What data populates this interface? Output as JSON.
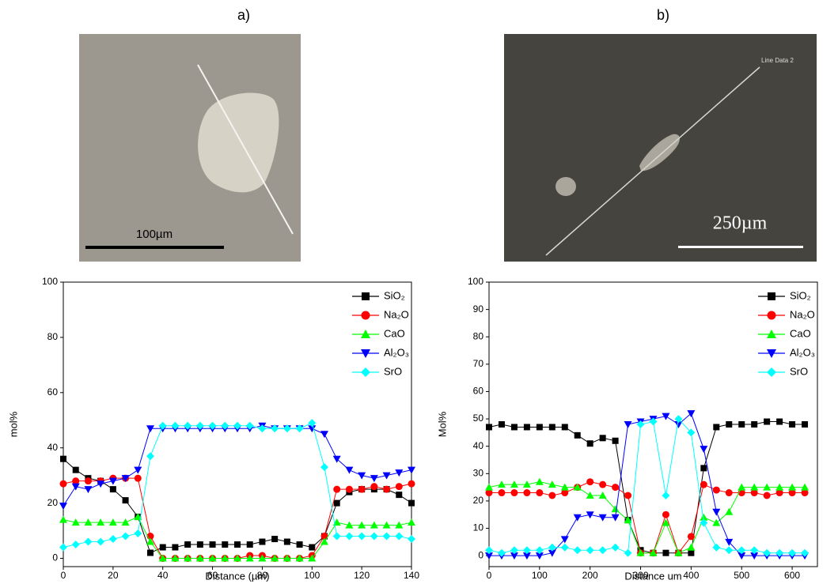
{
  "panels": [
    {
      "label": "a)",
      "scale_bar": "100µm"
    },
    {
      "label": "b)",
      "scale_bar": "250µm",
      "annotation": "Line Data 2"
    }
  ],
  "chart_data": [
    {
      "type": "line",
      "x_label": "Distance (µm)",
      "y_label": "mol%",
      "xlim": [
        0,
        140
      ],
      "ylim": [
        -3,
        100
      ],
      "xticks": [
        0,
        20,
        40,
        60,
        80,
        100,
        120,
        140
      ],
      "yticks": [
        0,
        20,
        40,
        60,
        80,
        100
      ],
      "grid": false,
      "legend": "upper right",
      "x": [
        0,
        5,
        10,
        15,
        20,
        25,
        30,
        35,
        40,
        45,
        50,
        55,
        60,
        65,
        70,
        75,
        80,
        85,
        90,
        95,
        100,
        105,
        110,
        115,
        120,
        125,
        130,
        135,
        140
      ],
      "series": [
        {
          "name": "SiO₂",
          "color": "#000000",
          "marker": "square",
          "values": [
            36,
            32,
            29,
            28,
            25,
            21,
            15,
            2,
            4,
            4,
            5,
            5,
            5,
            5,
            5,
            5,
            6,
            7,
            6,
            5,
            4,
            8,
            20,
            24,
            25,
            25,
            25,
            23,
            20
          ]
        },
        {
          "name": "Na₂O",
          "color": "#ff0000",
          "marker": "circle",
          "values": [
            27,
            28,
            28,
            28,
            29,
            29,
            29,
            8,
            0,
            0,
            0,
            0,
            0,
            0,
            0,
            1,
            1,
            0,
            0,
            0,
            1,
            8,
            25,
            25,
            25,
            26,
            25,
            26,
            27
          ]
        },
        {
          "name": "CaO",
          "color": "#00ff00",
          "marker": "triangle-up",
          "values": [
            14,
            13,
            13,
            13,
            13,
            13,
            15,
            6,
            0,
            0,
            0,
            0,
            0,
            0,
            0,
            0,
            0,
            0,
            0,
            0,
            0,
            6,
            13,
            12,
            12,
            12,
            12,
            12,
            13
          ]
        },
        {
          "name": "Al₂O₃",
          "color": "#0000ff",
          "marker": "triangle-down",
          "values": [
            19,
            26,
            25,
            27,
            28,
            29,
            32,
            47,
            47,
            47,
            47,
            47,
            47,
            47,
            47,
            47,
            48,
            47,
            47,
            47,
            47,
            45,
            36,
            32,
            30,
            29,
            30,
            31,
            32
          ]
        },
        {
          "name": "SrO",
          "color": "#00ffff",
          "marker": "diamond",
          "values": [
            4,
            5,
            6,
            6,
            7,
            8,
            9,
            37,
            48,
            48,
            48,
            48,
            48,
            48,
            48,
            48,
            47,
            47,
            47,
            47,
            49,
            33,
            8,
            8,
            8,
            8,
            8,
            8,
            7
          ]
        }
      ]
    },
    {
      "type": "line",
      "x_label": "Distance um",
      "y_label": "Mol%",
      "xlim": [
        0,
        650
      ],
      "ylim": [
        -4,
        100
      ],
      "xticks": [
        0,
        100,
        200,
        300,
        400,
        500,
        600
      ],
      "yticks": [
        0,
        10,
        20,
        30,
        40,
        50,
        60,
        70,
        80,
        90,
        100
      ],
      "grid": false,
      "legend": "upper right",
      "x": [
        0,
        25,
        50,
        75,
        100,
        125,
        150,
        175,
        200,
        225,
        250,
        275,
        300,
        325,
        350,
        375,
        400,
        425,
        450,
        475,
        500,
        525,
        550,
        575,
        600,
        625
      ],
      "series": [
        {
          "name": "SiO₂",
          "color": "#000000",
          "marker": "square",
          "values": [
            47,
            48,
            47,
            47,
            47,
            47,
            47,
            44,
            41,
            43,
            42,
            13,
            2,
            1,
            1,
            1,
            1,
            32,
            47,
            48,
            48,
            48,
            49,
            49,
            48,
            48
          ]
        },
        {
          "name": "Na₂O",
          "color": "#ff0000",
          "marker": "circle",
          "values": [
            23,
            23,
            23,
            23,
            23,
            22,
            23,
            25,
            27,
            26,
            25,
            22,
            1,
            1,
            15,
            1,
            7,
            26,
            24,
            23,
            23,
            23,
            22,
            23,
            23,
            23
          ]
        },
        {
          "name": "CaO",
          "color": "#00ff00",
          "marker": "triangle-up",
          "values": [
            25,
            26,
            26,
            26,
            27,
            26,
            25,
            25,
            22,
            22,
            17,
            13,
            1,
            1,
            12,
            1,
            3,
            14,
            12,
            16,
            25,
            25,
            25,
            25,
            25,
            25
          ]
        },
        {
          "name": "Al₂O₃",
          "color": "#0000ff",
          "marker": "triangle-down",
          "values": [
            0,
            0,
            0,
            0,
            0,
            1,
            6,
            14,
            15,
            14,
            14,
            48,
            49,
            50,
            51,
            48,
            52,
            39,
            16,
            5,
            0,
            0,
            0,
            0,
            0,
            0
          ]
        },
        {
          "name": "SrO",
          "color": "#00ffff",
          "marker": "diamond",
          "values": [
            2,
            1,
            2,
            2,
            2,
            3,
            3,
            2,
            2,
            2,
            3,
            1,
            48,
            49,
            22,
            50,
            45,
            12,
            3,
            2,
            2,
            2,
            1,
            1,
            1,
            1
          ]
        }
      ]
    }
  ]
}
